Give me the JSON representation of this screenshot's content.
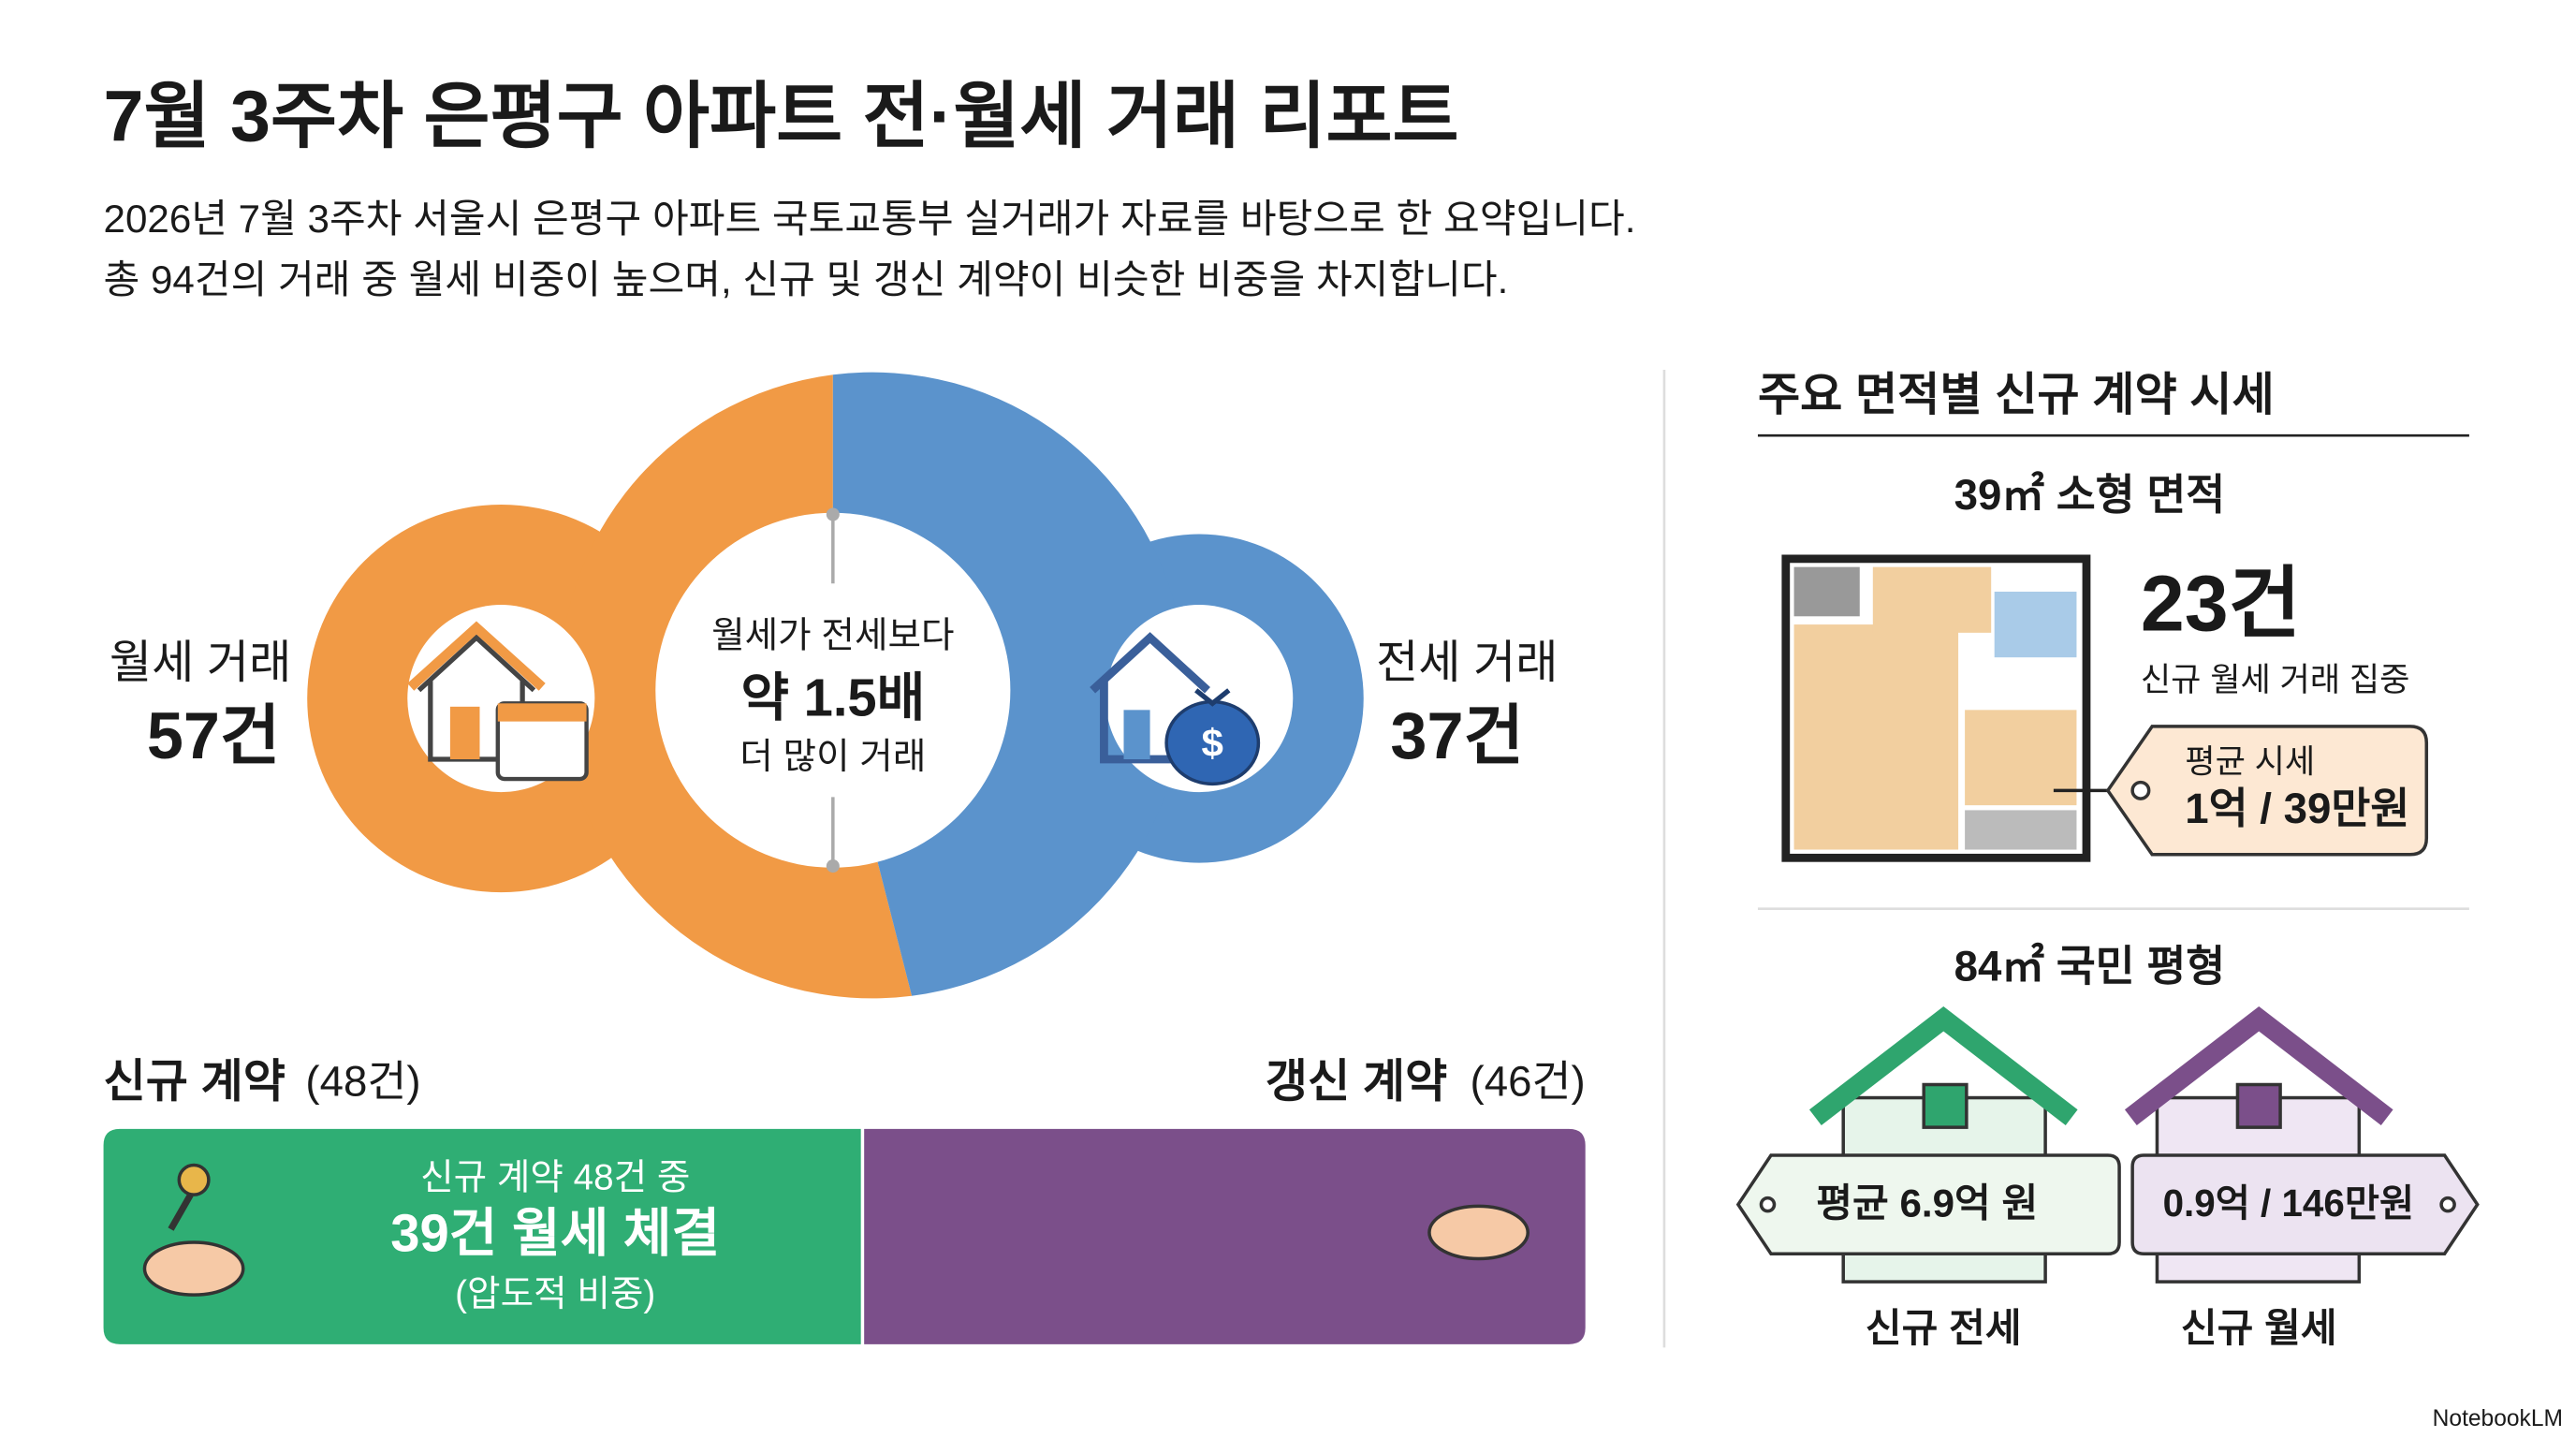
{
  "header": {
    "title": "7월 3주차 은평구 아파트 전·월세 거래 리포트",
    "subtitle_lines": [
      "2026년 7월 3주차 서울시 은평구 아파트 국토교통부 실거래가 자료를 바탕으로 한 요약입니다.",
      "총 94건의 거래 중 월세 비중이 높으며, 신규 및 갱신 계약이 비슷한 비중을 차지합니다."
    ]
  },
  "comparison": {
    "left": {
      "label": "월세 거래",
      "count": "57건"
    },
    "right": {
      "label": "전세 거래",
      "count": "37건"
    },
    "center": {
      "line1": "월세가 전세보다",
      "line2": "약 1.5배",
      "line3": "더 많이 거래"
    }
  },
  "contracts": {
    "new": {
      "label": "신규 계약",
      "count": "(48건)",
      "detail_lines": [
        "신규 계약 48건 중",
        "39건 월세 체결",
        "(압도적 비중)"
      ]
    },
    "renewal": {
      "label": "갱신 계약",
      "count": "(46건)"
    }
  },
  "side_panel": {
    "title": "주요 면적별 신규 계약 시세",
    "small": {
      "heading": "39㎡ 소형 면적",
      "count": "23건",
      "note": "신규 월세 거래 집중",
      "tag_label": "평균 시세",
      "tag_value": "1억 / 39만원"
    },
    "medium": {
      "heading": "84㎡ 국민 평형",
      "jeonse": {
        "price": "평균 6.9억 원",
        "label": "신규 전세"
      },
      "wolse": {
        "price": "0.9억 / 146만원",
        "label": "신규 월세"
      }
    }
  },
  "footer": {
    "brand": "NotebookLM"
  }
}
